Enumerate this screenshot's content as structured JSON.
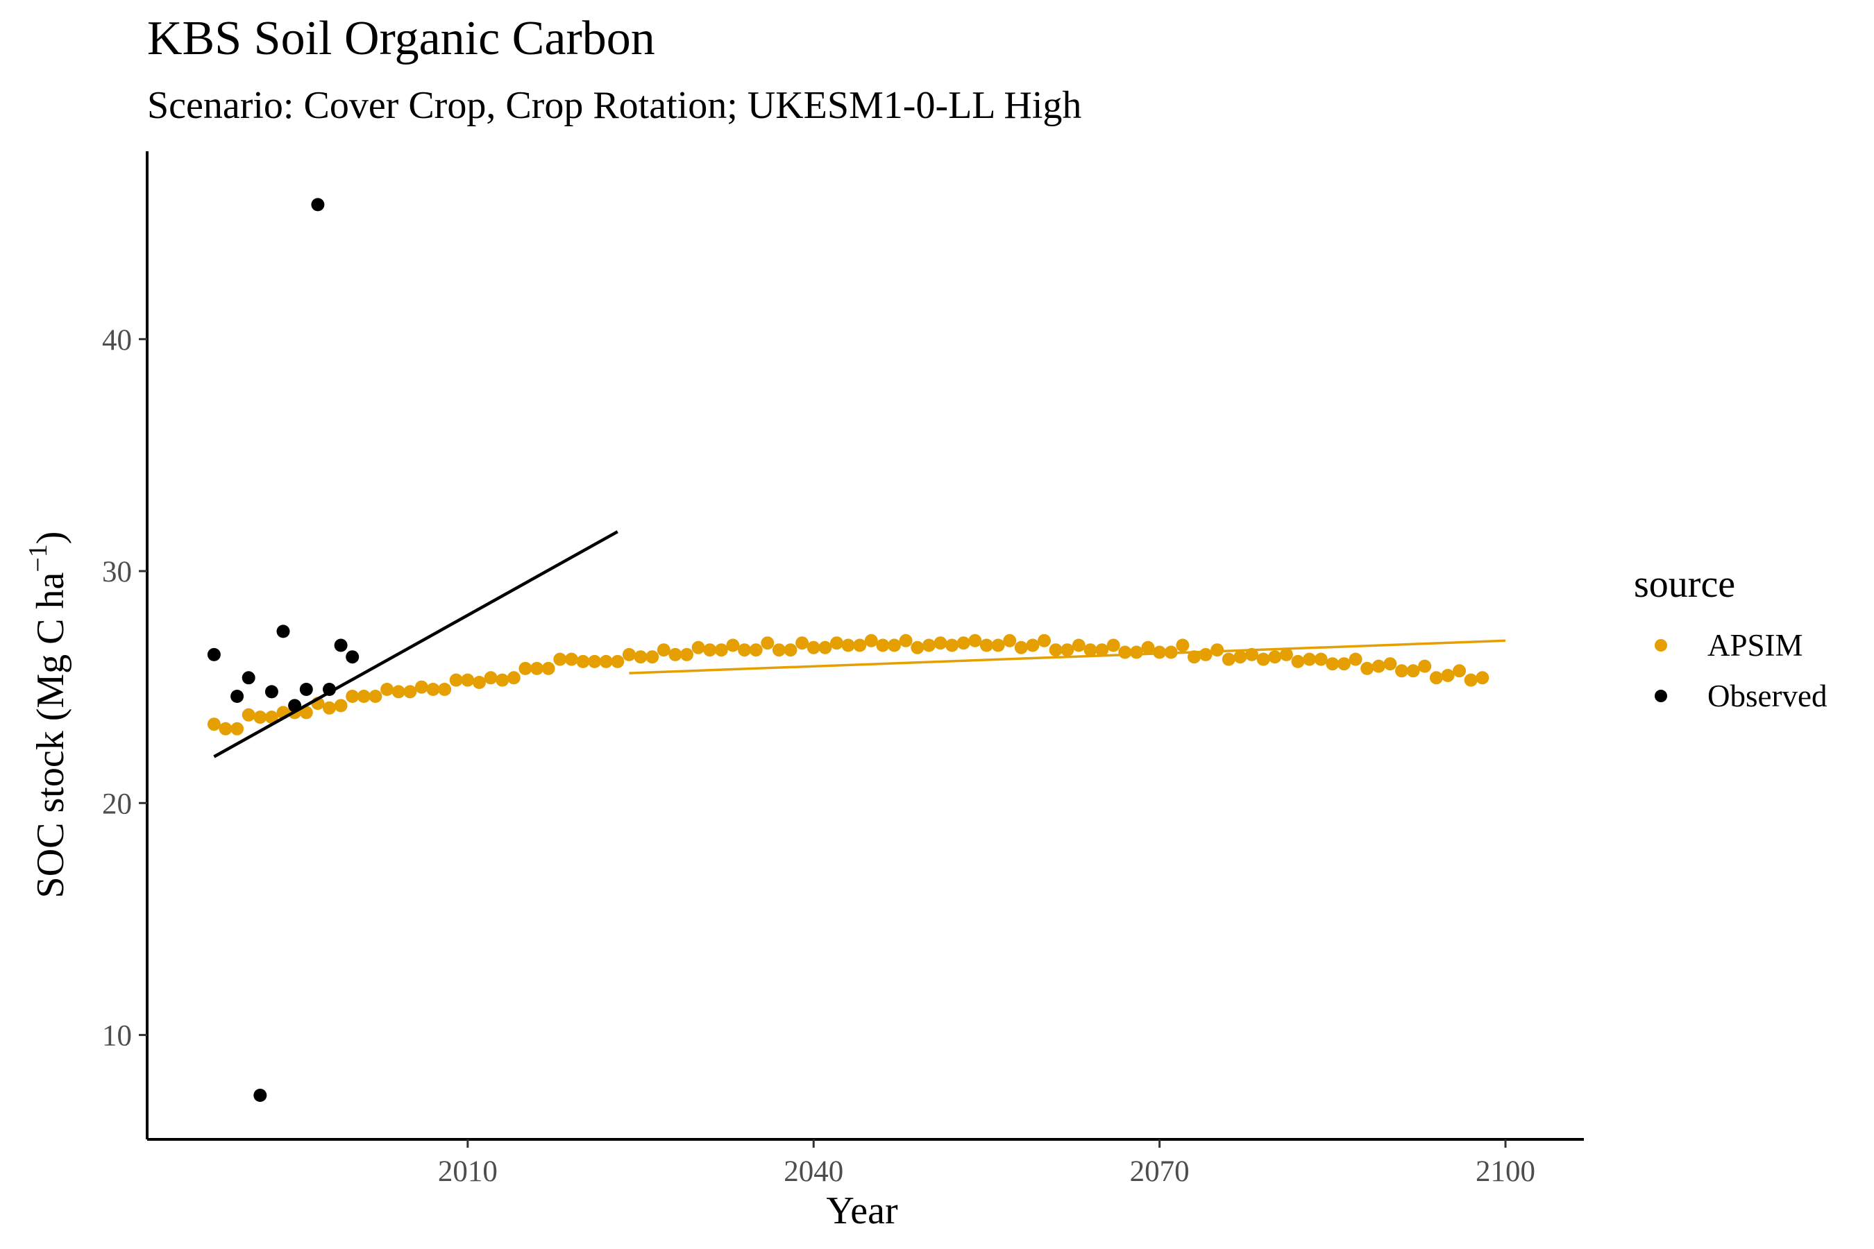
{
  "chart_data": {
    "type": "scatter",
    "title": "KBS Soil Organic Carbon",
    "subtitle": "Scenario: Cover Crop, Crop Rotation; UKESM1-0-LL High",
    "xlabel": "Year",
    "ylabel": "SOC stock (Mg C ha",
    "ylabel_sup": "−1",
    "ylabel_close": ")",
    "xlim": [
      1982.2,
      2106.8
    ],
    "ylim": [
      5.5,
      48.1
    ],
    "x_ticks": [
      2010,
      2040,
      2070,
      2100
    ],
    "y_ticks": [
      10,
      20,
      30,
      40
    ],
    "grid": false,
    "legend": {
      "title": "source",
      "placement": "right",
      "entries": [
        {
          "name": "APSIM",
          "color": "#E69F00"
        },
        {
          "name": "Observed",
          "color": "#000000"
        }
      ]
    },
    "series": [
      {
        "name": "APSIM",
        "color": "#E69F00",
        "points": [
          [
            1988,
            23.4
          ],
          [
            1989,
            23.2
          ],
          [
            1990,
            23.2
          ],
          [
            1991,
            23.8
          ],
          [
            1992,
            23.7
          ],
          [
            1993,
            23.7
          ],
          [
            1994,
            23.9
          ],
          [
            1995,
            23.9
          ],
          [
            1996,
            23.9
          ],
          [
            1997,
            24.3
          ],
          [
            1998,
            24.1
          ],
          [
            1999,
            24.2
          ],
          [
            2000,
            24.6
          ],
          [
            2001,
            24.6
          ],
          [
            2002,
            24.6
          ],
          [
            2003,
            24.9
          ],
          [
            2004,
            24.8
          ],
          [
            2005,
            24.8
          ],
          [
            2006,
            25.0
          ],
          [
            2007,
            24.9
          ],
          [
            2008,
            24.9
          ],
          [
            2009,
            25.3
          ],
          [
            2010,
            25.3
          ],
          [
            2011,
            25.2
          ],
          [
            2012,
            25.4
          ],
          [
            2013,
            25.3
          ],
          [
            2014,
            25.4
          ],
          [
            2015,
            25.8
          ],
          [
            2016,
            25.8
          ],
          [
            2017,
            25.8
          ],
          [
            2018,
            26.2
          ],
          [
            2019,
            26.2
          ],
          [
            2020,
            26.1
          ],
          [
            2021,
            26.1
          ],
          [
            2022,
            26.1
          ],
          [
            2023,
            26.1
          ],
          [
            2024,
            26.4
          ],
          [
            2025,
            26.3
          ],
          [
            2026,
            26.3
          ],
          [
            2027,
            26.6
          ],
          [
            2028,
            26.4
          ],
          [
            2029,
            26.4
          ],
          [
            2030,
            26.7
          ],
          [
            2031,
            26.6
          ],
          [
            2032,
            26.6
          ],
          [
            2033,
            26.8
          ],
          [
            2034,
            26.6
          ],
          [
            2035,
            26.6
          ],
          [
            2036,
            26.9
          ],
          [
            2037,
            26.6
          ],
          [
            2038,
            26.6
          ],
          [
            2039,
            26.9
          ],
          [
            2040,
            26.7
          ],
          [
            2041,
            26.7
          ],
          [
            2042,
            26.9
          ],
          [
            2043,
            26.8
          ],
          [
            2044,
            26.8
          ],
          [
            2045,
            27.0
          ],
          [
            2046,
            26.8
          ],
          [
            2047,
            26.8
          ],
          [
            2048,
            27.0
          ],
          [
            2049,
            26.7
          ],
          [
            2050,
            26.8
          ],
          [
            2051,
            26.9
          ],
          [
            2052,
            26.8
          ],
          [
            2053,
            26.9
          ],
          [
            2054,
            27.0
          ],
          [
            2055,
            26.8
          ],
          [
            2056,
            26.8
          ],
          [
            2057,
            27.0
          ],
          [
            2058,
            26.7
          ],
          [
            2059,
            26.8
          ],
          [
            2060,
            27.0
          ],
          [
            2061,
            26.6
          ],
          [
            2062,
            26.6
          ],
          [
            2063,
            26.8
          ],
          [
            2064,
            26.6
          ],
          [
            2065,
            26.6
          ],
          [
            2066,
            26.8
          ],
          [
            2067,
            26.5
          ],
          [
            2068,
            26.5
          ],
          [
            2069,
            26.7
          ],
          [
            2070,
            26.5
          ],
          [
            2071,
            26.5
          ],
          [
            2072,
            26.8
          ],
          [
            2073,
            26.3
          ],
          [
            2074,
            26.4
          ],
          [
            2075,
            26.6
          ],
          [
            2076,
            26.2
          ],
          [
            2077,
            26.3
          ],
          [
            2078,
            26.4
          ],
          [
            2079,
            26.2
          ],
          [
            2080,
            26.3
          ],
          [
            2081,
            26.4
          ],
          [
            2082,
            26.1
          ],
          [
            2083,
            26.2
          ],
          [
            2084,
            26.2
          ],
          [
            2085,
            26.0
          ],
          [
            2086,
            26.0
          ],
          [
            2087,
            26.2
          ],
          [
            2088,
            25.8
          ],
          [
            2089,
            25.9
          ],
          [
            2090,
            26.0
          ],
          [
            2091,
            25.7
          ],
          [
            2092,
            25.7
          ],
          [
            2093,
            25.9
          ],
          [
            2094,
            25.4
          ],
          [
            2095,
            25.5
          ],
          [
            2096,
            25.7
          ],
          [
            2097,
            25.3
          ],
          [
            2098,
            25.4
          ]
        ],
        "trend_line": [
          [
            2024,
            25.6
          ],
          [
            2100,
            27.0
          ]
        ]
      },
      {
        "name": "Observed",
        "color": "#000000",
        "points": [
          [
            1988,
            26.4
          ],
          [
            1990,
            24.6
          ],
          [
            1991,
            25.4
          ],
          [
            1992,
            7.4
          ],
          [
            1993,
            24.8
          ],
          [
            1994,
            27.4
          ],
          [
            1995,
            24.2
          ],
          [
            1996,
            24.9
          ],
          [
            1997,
            45.8
          ],
          [
            1998,
            24.9
          ],
          [
            1999,
            26.8
          ],
          [
            2000,
            26.3
          ]
        ],
        "trend_line": [
          [
            1988,
            22.0
          ],
          [
            2023,
            31.7
          ]
        ]
      }
    ]
  }
}
